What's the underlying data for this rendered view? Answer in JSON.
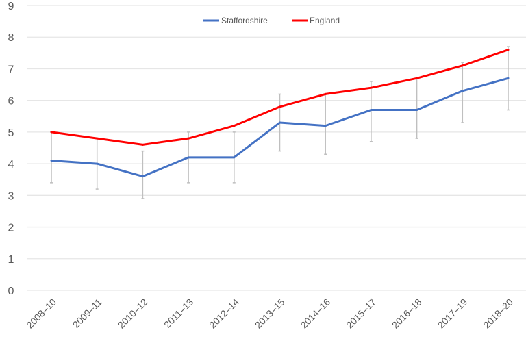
{
  "chart_data": {
    "type": "line",
    "title": "",
    "xlabel": "",
    "ylabel": "",
    "ylim": [
      0,
      9
    ],
    "yticks": [
      0,
      1,
      2,
      3,
      4,
      5,
      6,
      7,
      8,
      9
    ],
    "grid": true,
    "legend_position": "top-center",
    "categories": [
      "2008–10",
      "2009–11",
      "2010–12",
      "2011–13",
      "2012–14",
      "2013–15",
      "2014–16",
      "2015–17",
      "2016–18",
      "2017–19",
      "2018–20"
    ],
    "series": [
      {
        "name": "Staffordshire",
        "color": "#4472C4",
        "values": [
          4.1,
          4.0,
          3.6,
          4.2,
          4.2,
          5.3,
          5.2,
          5.7,
          5.7,
          6.3,
          6.7
        ],
        "error_lower": [
          3.4,
          3.2,
          2.9,
          3.4,
          3.4,
          4.4,
          4.3,
          4.7,
          4.8,
          5.3,
          5.7
        ],
        "error_upper": [
          5.0,
          4.8,
          4.4,
          5.0,
          5.0,
          6.2,
          6.2,
          6.6,
          6.7,
          7.2,
          7.7
        ]
      },
      {
        "name": "England",
        "color": "#FF0000",
        "values": [
          5.0,
          4.8,
          4.6,
          4.8,
          5.2,
          5.8,
          6.2,
          6.4,
          6.7,
          7.1,
          7.6
        ]
      }
    ]
  }
}
